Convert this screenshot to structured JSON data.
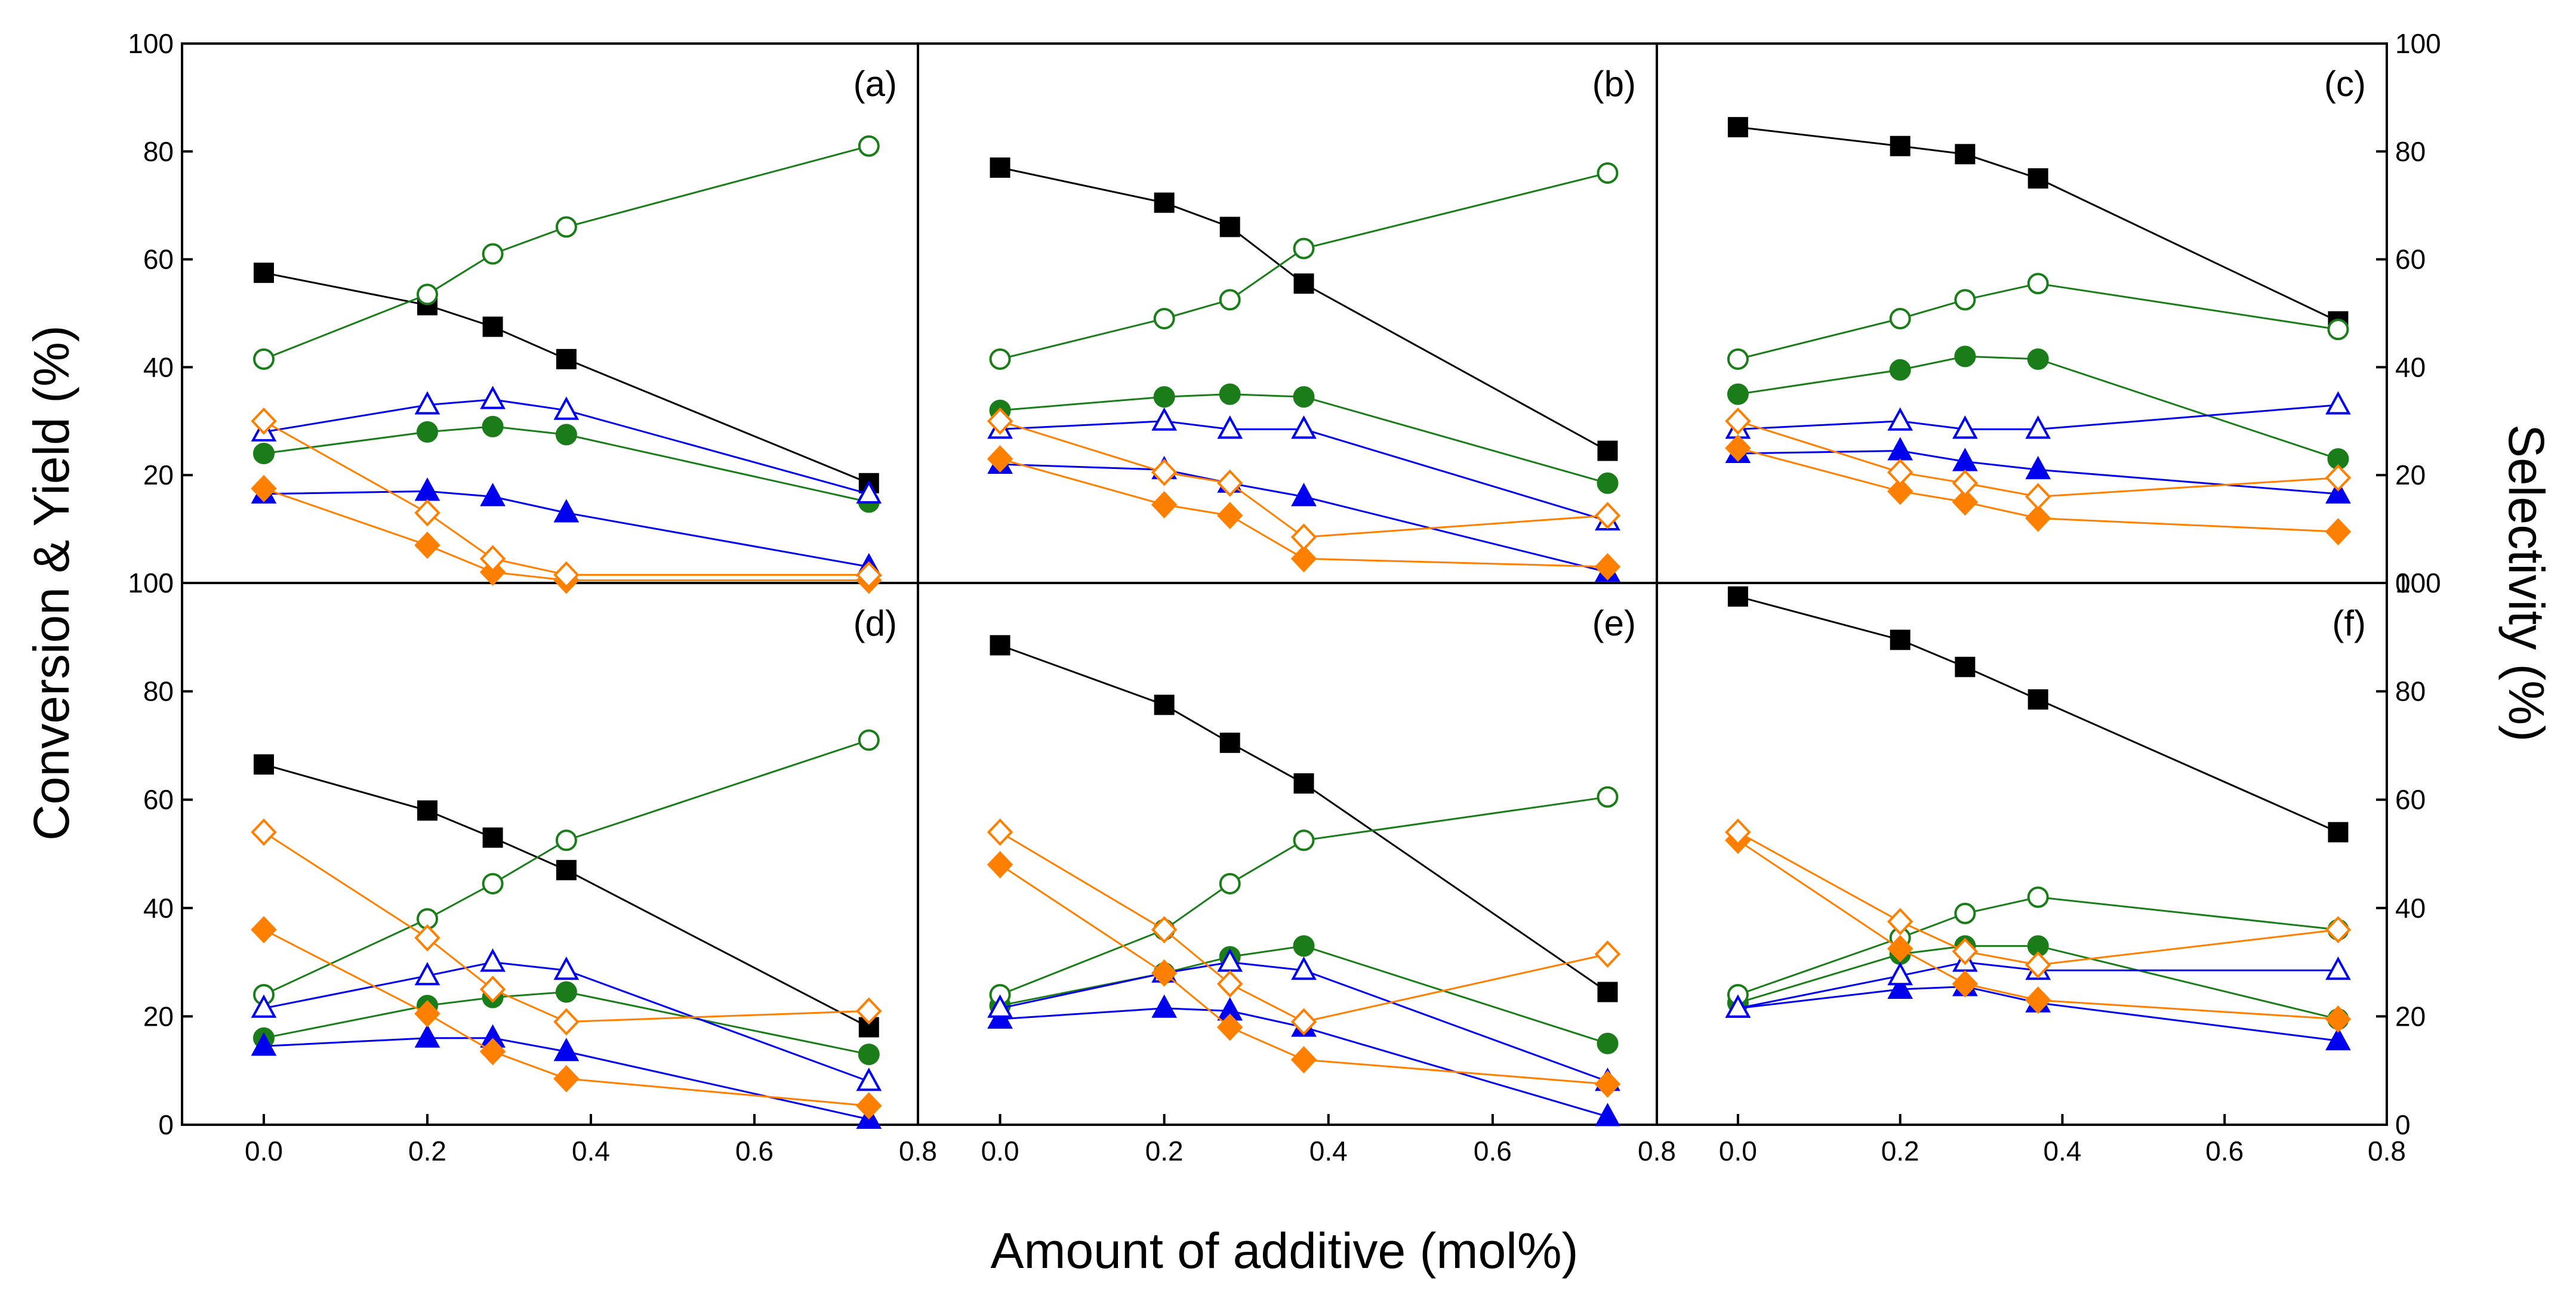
{
  "chart_data": {
    "type": "line",
    "layout": "2x3 panel grid",
    "xlabel": "Amount of additive (mol%)",
    "ylabel_left": "Conversion & Yield (%)",
    "ylabel_right": "Selectivity (%)",
    "xlim": [
      -0.1,
      0.8
    ],
    "ylim": [
      0,
      100
    ],
    "x_ticks": [
      0.0,
      0.2,
      0.4,
      0.6,
      0.8
    ],
    "x_tick_labels": [
      "0.0",
      "0.2",
      "0.4",
      "0.6",
      "0.8"
    ],
    "y_ticks": [
      0,
      20,
      40,
      60,
      80,
      100
    ],
    "y_tick_labels": [
      "0",
      "20",
      "40",
      "60",
      "80",
      "100"
    ],
    "grid": false,
    "legend": "none",
    "x": [
      0.0,
      0.2,
      0.28,
      0.37,
      0.74
    ],
    "series_styles": [
      {
        "key": "s1",
        "color": "#000000",
        "marker": "square",
        "filled": true
      },
      {
        "key": "s2",
        "color": "#1a7d1a",
        "marker": "circle",
        "filled": true
      },
      {
        "key": "s3",
        "color": "#1a7d1a",
        "marker": "circle",
        "filled": false
      },
      {
        "key": "s4",
        "color": "#0000ee",
        "marker": "triangle",
        "filled": true
      },
      {
        "key": "s5",
        "color": "#0000ee",
        "marker": "triangle",
        "filled": false
      },
      {
        "key": "s6",
        "color": "#ff7f00",
        "marker": "diamond",
        "filled": true
      },
      {
        "key": "s7",
        "color": "#ff7f00",
        "marker": "diamond",
        "filled": false
      }
    ],
    "panels": [
      {
        "label": "(a)",
        "series": [
          {
            "key": "s1",
            "values": [
              57.5,
              51.5,
              47.5,
              41.5,
              18.5
            ]
          },
          {
            "key": "s2",
            "values": [
              24,
              28,
              29,
              27.5,
              15
            ]
          },
          {
            "key": "s3",
            "values": [
              41.5,
              53.5,
              61,
              66,
              81
            ]
          },
          {
            "key": "s4",
            "values": [
              16.5,
              17,
              16,
              13,
              3
            ]
          },
          {
            "key": "s5",
            "values": [
              28,
              33,
              34,
              32,
              16.5
            ]
          },
          {
            "key": "s6",
            "values": [
              17.5,
              7,
              2,
              0.5,
              0.5
            ]
          },
          {
            "key": "s7",
            "values": [
              30,
              13,
              4.5,
              1.5,
              1.5
            ]
          }
        ]
      },
      {
        "label": "(b)",
        "series": [
          {
            "key": "s1",
            "values": [
              77,
              70.5,
              66,
              55.5,
              24.5
            ]
          },
          {
            "key": "s2",
            "values": [
              32,
              34.5,
              35,
              34.5,
              18.5
            ]
          },
          {
            "key": "s3",
            "values": [
              41.5,
              49,
              52.5,
              62,
              76
            ]
          },
          {
            "key": "s4",
            "values": [
              22,
              21,
              18.5,
              16,
              2
            ]
          },
          {
            "key": "s5",
            "values": [
              28.5,
              30,
              28.5,
              28.5,
              11.5
            ]
          },
          {
            "key": "s6",
            "values": [
              23,
              14.5,
              12.5,
              4.5,
              3
            ]
          },
          {
            "key": "s7",
            "values": [
              30,
              20.5,
              18.5,
              8.5,
              12.5
            ]
          }
        ]
      },
      {
        "label": "(c)",
        "series": [
          {
            "key": "s1",
            "values": [
              84.5,
              81,
              79.5,
              75,
              48.5
            ]
          },
          {
            "key": "s2",
            "values": [
              35,
              39.5,
              42,
              41.5,
              23
            ]
          },
          {
            "key": "s3",
            "values": [
              41.5,
              49,
              52.5,
              55.5,
              47
            ]
          },
          {
            "key": "s4",
            "values": [
              24,
              24.5,
              22.5,
              21,
              16.5
            ]
          },
          {
            "key": "s5",
            "values": [
              28.5,
              30,
              28.5,
              28.5,
              33
            ]
          },
          {
            "key": "s6",
            "values": [
              25,
              17,
              15,
              12,
              9.5
            ]
          },
          {
            "key": "s7",
            "values": [
              30,
              20.5,
              18.5,
              16,
              19.5
            ]
          }
        ]
      },
      {
        "label": "(d)",
        "series": [
          {
            "key": "s1",
            "values": [
              66.5,
              58,
              53,
              47,
              18
            ]
          },
          {
            "key": "s2",
            "values": [
              16,
              22,
              23.5,
              24.5,
              13
            ]
          },
          {
            "key": "s3",
            "values": [
              24,
              38,
              44.5,
              52.5,
              71
            ]
          },
          {
            "key": "s4",
            "values": [
              14.5,
              16,
              16,
              13.5,
              1
            ]
          },
          {
            "key": "s5",
            "values": [
              21.5,
              27.5,
              30,
              28.5,
              8
            ]
          },
          {
            "key": "s6",
            "values": [
              36,
              20.5,
              13.5,
              8.5,
              3.5
            ]
          },
          {
            "key": "s7",
            "values": [
              54,
              34.5,
              25,
              19,
              21
            ]
          }
        ]
      },
      {
        "label": "(e)",
        "series": [
          {
            "key": "s1",
            "values": [
              88.5,
              77.5,
              70.5,
              63,
              24.5
            ]
          },
          {
            "key": "s2",
            "values": [
              22,
              28,
              31,
              33,
              15
            ]
          },
          {
            "key": "s3",
            "values": [
              24,
              36,
              44.5,
              52.5,
              60.5
            ]
          },
          {
            "key": "s4",
            "values": [
              19.5,
              21.5,
              21,
              18,
              1.5
            ]
          },
          {
            "key": "s5",
            "values": [
              21.5,
              28,
              30,
              28.5,
              8
            ]
          },
          {
            "key": "s6",
            "values": [
              48,
              28,
              18,
              12,
              7.5
            ]
          },
          {
            "key": "s7",
            "values": [
              54,
              36,
              26,
              19,
              31.5
            ]
          }
        ]
      },
      {
        "label": "(f)",
        "series": [
          {
            "key": "s1",
            "values": [
              97.5,
              89.5,
              84.5,
              78.5,
              54
            ]
          },
          {
            "key": "s2",
            "values": [
              22.5,
              31.5,
              33,
              33,
              19.5
            ]
          },
          {
            "key": "s3",
            "values": [
              24,
              34.5,
              39,
              42,
              36
            ]
          },
          {
            "key": "s4",
            "values": [
              21.5,
              25,
              25.5,
              22.5,
              15.5
            ]
          },
          {
            "key": "s5",
            "values": [
              21.5,
              27.5,
              30,
              28.5,
              28.5
            ]
          },
          {
            "key": "s6",
            "values": [
              52.5,
              32.5,
              26,
              23,
              19.5
            ]
          },
          {
            "key": "s7",
            "values": [
              54,
              37.5,
              32,
              29.5,
              36
            ]
          }
        ]
      }
    ]
  }
}
